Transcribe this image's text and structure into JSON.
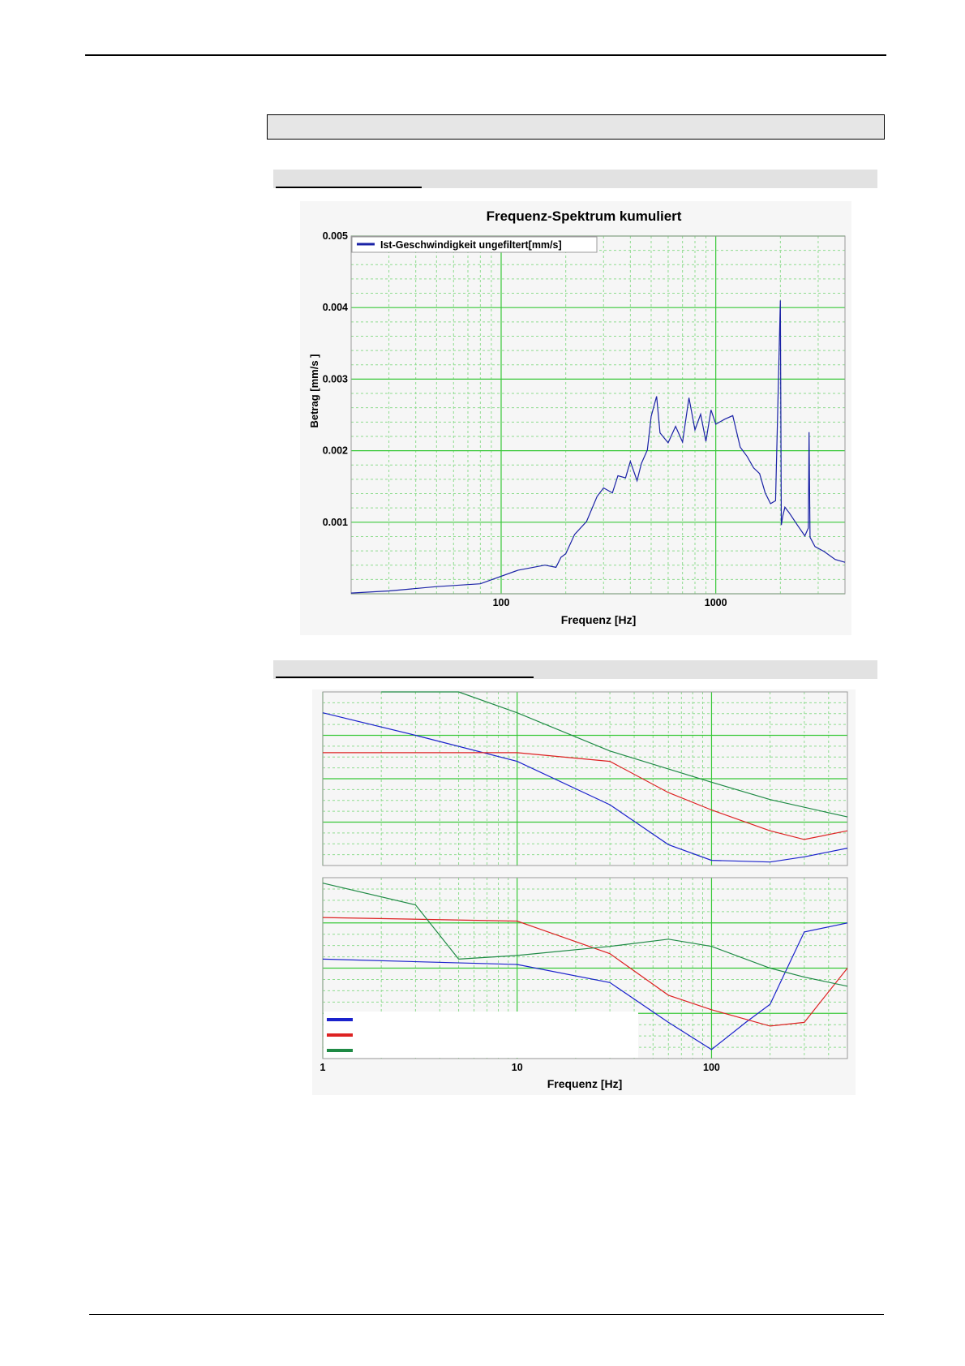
{
  "chart_data": [
    {
      "type": "line",
      "title": "Frequenz-Spektrum kumuliert",
      "xlabel": "Frequenz [Hz]",
      "ylabel": "Betrag [mm/s ]",
      "x_scale": "log",
      "xlim": [
        20,
        4000
      ],
      "ylim": [
        0,
        0.005
      ],
      "x_ticks": [
        "100",
        "1000"
      ],
      "y_ticks": [
        "0.001",
        "0.002",
        "0.003",
        "0.004",
        "0.005"
      ],
      "grid": true,
      "legend_position": "top-left",
      "series": [
        {
          "name": "Ist-Geschwindigkeit ungefiltert[mm/s]",
          "color": "#1a22a6",
          "x": [
            20,
            30,
            50,
            80,
            120,
            160,
            180,
            190,
            200,
            220,
            250,
            280,
            300,
            330,
            350,
            380,
            400,
            430,
            450,
            480,
            500,
            530,
            550,
            600,
            650,
            700,
            750,
            800,
            850,
            900,
            950,
            1000,
            1100,
            1200,
            1300,
            1400,
            1500,
            1600,
            1700,
            1800,
            1900,
            2000,
            2020,
            2050,
            2100,
            2200,
            2400,
            2600,
            2700,
            2720,
            2750,
            2900,
            3200,
            3600,
            4000
          ],
          "values": [
            1e-05,
            4e-05,
            0.0001,
            0.00014,
            0.00033,
            0.0004,
            0.00037,
            0.00051,
            0.00056,
            0.00083,
            0.00101,
            0.00136,
            0.00148,
            0.00141,
            0.00165,
            0.00162,
            0.00185,
            0.00158,
            0.00182,
            0.00201,
            0.00248,
            0.00276,
            0.00225,
            0.00211,
            0.00234,
            0.00212,
            0.00274,
            0.00229,
            0.00251,
            0.00213,
            0.00257,
            0.00237,
            0.00244,
            0.00249,
            0.00205,
            0.00192,
            0.00176,
            0.00168,
            0.00141,
            0.00126,
            0.0013,
            0.0041,
            0.00096,
            0.00108,
            0.00121,
            0.00113,
            0.00096,
            0.00081,
            0.00092,
            0.00226,
            0.00079,
            0.00066,
            0.00059,
            0.00048,
            0.00044
          ]
        }
      ]
    },
    {
      "type": "line",
      "xlabel": "Frequenz [Hz]",
      "x_scale": "log",
      "xlim": [
        1,
        500
      ],
      "x_ticks": [
        "1",
        "10",
        "100"
      ],
      "grid": true,
      "panels": [
        {
          "series": [
            {
              "color": "#1a22cc",
              "x": [
                1,
                3,
                10,
                30,
                60,
                100,
                200,
                300,
                500
              ],
              "values": [
                0.88,
                0.75,
                0.6,
                0.35,
                0.12,
                0.03,
                0.02,
                0.05,
                0.1
              ]
            },
            {
              "color": "#dd2222",
              "x": [
                1,
                10,
                30,
                60,
                100,
                200,
                300,
                500
              ],
              "values": [
                0.65,
                0.65,
                0.6,
                0.42,
                0.32,
                0.2,
                0.15,
                0.2
              ]
            },
            {
              "color": "#1f8a45",
              "x": [
                2,
                5,
                10,
                30,
                100,
                200,
                500
              ],
              "values": [
                1.0,
                1.0,
                0.88,
                0.66,
                0.48,
                0.38,
                0.28
              ]
            }
          ]
        },
        {
          "series": [
            {
              "color": "#1a22cc",
              "x": [
                1,
                10,
                30,
                60,
                100,
                150,
                200,
                300,
                500
              ],
              "values": [
                0.55,
                0.52,
                0.42,
                0.2,
                0.05,
                0.2,
                0.3,
                0.7,
                0.75
              ]
            },
            {
              "color": "#dd2222",
              "x": [
                1,
                10,
                30,
                60,
                100,
                200,
                300,
                500
              ],
              "values": [
                0.78,
                0.76,
                0.58,
                0.35,
                0.27,
                0.18,
                0.2,
                0.5
              ]
            },
            {
              "color": "#1f8a45",
              "x": [
                1,
                3,
                5,
                10,
                30,
                60,
                100,
                200,
                300,
                500
              ],
              "values": [
                0.97,
                0.85,
                0.55,
                0.57,
                0.62,
                0.66,
                0.62,
                0.5,
                0.45,
                0.4
              ]
            }
          ]
        }
      ]
    }
  ]
}
